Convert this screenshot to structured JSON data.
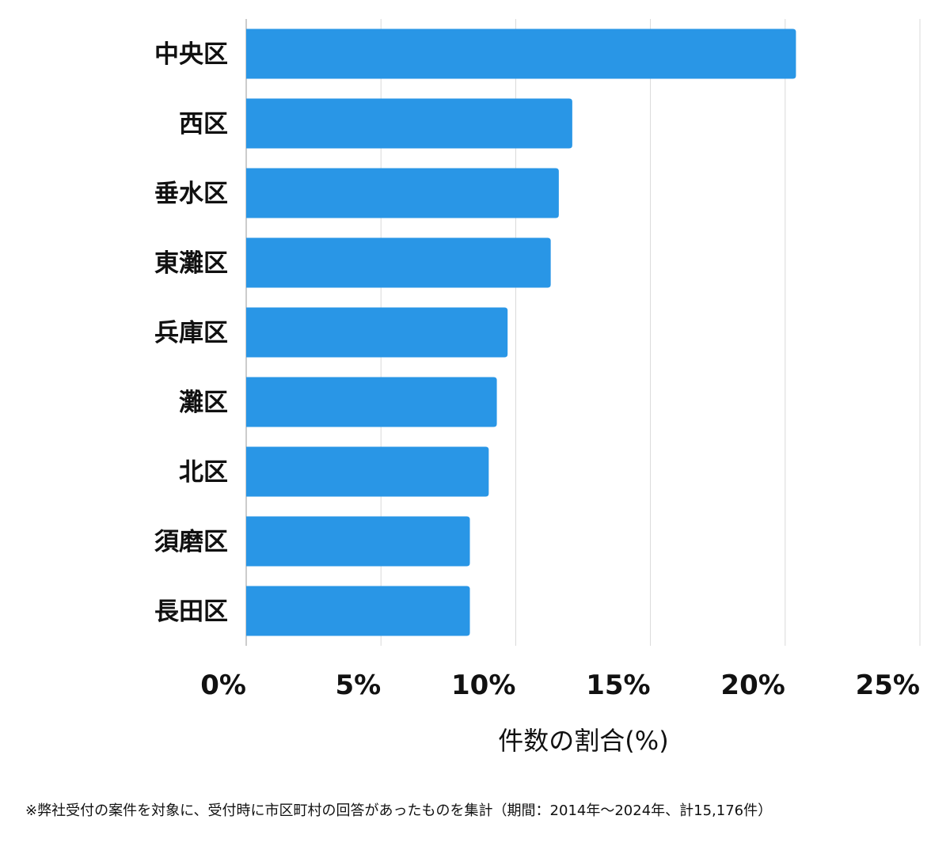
{
  "chart_data": {
    "type": "bar",
    "orientation": "horizontal",
    "categories": [
      "中央区",
      "西区",
      "垂水区",
      "東灘区",
      "兵庫区",
      "灘区",
      "北区",
      "須磨区",
      "長田区"
    ],
    "values": [
      20.4,
      12.1,
      11.6,
      11.3,
      9.7,
      9.3,
      9.0,
      8.3,
      8.3
    ],
    "xlabel": "件数の割合(%)",
    "ylabel": "",
    "xlim": [
      0,
      25
    ],
    "ticks": [
      0,
      5,
      10,
      15,
      20,
      25
    ],
    "tick_labels": [
      "0%",
      "5%",
      "10%",
      "15%",
      "20%",
      "25%"
    ],
    "grid": true,
    "colors": {
      "bar": "#2996e6",
      "grid": "#d9d9d9",
      "axis": "#999999"
    }
  },
  "footnote": "※弊社受付の案件を対象に、受付時に市区町村の回答があったものを集計（期間：2014年～2024年、計15,176件）"
}
